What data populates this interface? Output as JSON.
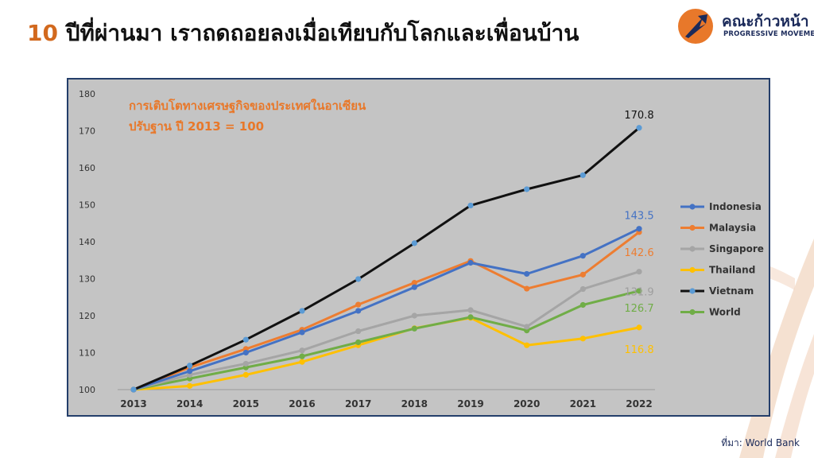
{
  "slide": {
    "title_number": "10",
    "title_text": "ปีที่ผ่านมา เราถดถอยลงเมื่อเทียบกับโลกและเพื่อนบ้าน",
    "source": "ที่มา: World Bank"
  },
  "logo": {
    "name": "คณะก้าวหน้า",
    "subtitle": "PROGRESSIVE MOVEMENT",
    "icon": "rocket-arrow-logo",
    "color": "#e8782a"
  },
  "chart_data": {
    "type": "line",
    "title": "การเติบโตทางเศรษฐกิจของประเทศในอาเซียน",
    "subtitle": "ปรับฐาน ปี 2013 = 100",
    "xlabel": "",
    "ylabel": "",
    "x": [
      "2013",
      "2014",
      "2015",
      "2016",
      "2017",
      "2018",
      "2019",
      "2020",
      "2021",
      "2022"
    ],
    "ylim": [
      100,
      180
    ],
    "yticks": [
      100,
      110,
      120,
      130,
      140,
      150,
      160,
      170,
      180
    ],
    "grid": false,
    "legend_position": "right",
    "series": [
      {
        "name": "Indonesia",
        "color": "#4472c4",
        "values": [
          100,
          105.0,
          110.0,
          115.5,
          121.3,
          127.7,
          134.3,
          131.3,
          136.2,
          143.5
        ],
        "end_label": "143.5"
      },
      {
        "name": "Malaysia",
        "color": "#ed7d31",
        "values": [
          100,
          106.0,
          111.0,
          116.2,
          123.0,
          128.9,
          134.8,
          127.3,
          131.1,
          142.6
        ],
        "end_label": "142.6"
      },
      {
        "name": "Singapore",
        "color": "#a5a5a5",
        "values": [
          100,
          104.0,
          107.0,
          110.6,
          115.8,
          120.0,
          121.5,
          117.0,
          127.2,
          131.9
        ],
        "end_label": "131.9"
      },
      {
        "name": "Thailand",
        "color": "#ffc000",
        "values": [
          100,
          101.0,
          104.0,
          107.5,
          112.0,
          116.6,
          119.4,
          112.0,
          113.8,
          116.8
        ],
        "end_label": "116.8"
      },
      {
        "name": "Vietnam",
        "color": "#111111",
        "marker_color": "#5b9bd5",
        "values": [
          100,
          106.5,
          113.5,
          121.3,
          129.9,
          139.6,
          149.8,
          154.2,
          158.0,
          170.8
        ],
        "end_label": "170.8"
      },
      {
        "name": "World",
        "color": "#70ad47",
        "values": [
          100,
          103.0,
          106.0,
          109.0,
          112.8,
          116.5,
          119.6,
          116.0,
          122.9,
          126.7
        ],
        "end_label": "126.7"
      }
    ]
  }
}
